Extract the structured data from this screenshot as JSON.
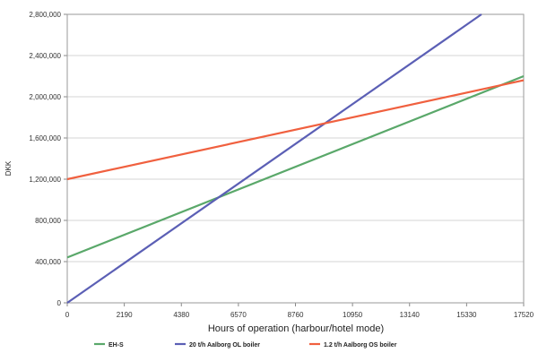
{
  "chart_data": {
    "type": "line",
    "xlabel": "Hours of operation (harbour/hotel mode)",
    "ylabel": "DKK",
    "xlim": [
      0,
      17520
    ],
    "ylim": [
      0,
      2800000
    ],
    "x_ticks": [
      0,
      2190,
      4380,
      6570,
      8760,
      10950,
      13140,
      15330,
      17520
    ],
    "x_tick_labels": [
      "0",
      "2190",
      "4380",
      "6570",
      "8760",
      "10950",
      "13140",
      "15330",
      "17520"
    ],
    "y_ticks": [
      0,
      400000,
      800000,
      1200000,
      1600000,
      2000000,
      2400000,
      2800000
    ],
    "y_tick_labels": [
      "0",
      "400,000",
      "800,000",
      "1,200,000",
      "1,600,000",
      "2,000,000",
      "2,400,000",
      "2,800,000"
    ],
    "grid": "horizontal",
    "legend_position": "bottom",
    "series": [
      {
        "name": "EH-S",
        "color": "#5aa86a",
        "x": [
          0,
          17520
        ],
        "y": [
          440000,
          2200000
        ]
      },
      {
        "name": "20 t/h Aalborg OL boiler",
        "color": "#5b5fb5",
        "x": [
          0,
          15900
        ],
        "y": [
          0,
          2800000
        ]
      },
      {
        "name": "1.2 t/h Aalborg OS boiler",
        "color": "#f0603f",
        "x": [
          0,
          17520
        ],
        "y": [
          1200000,
          2160000
        ]
      }
    ]
  }
}
